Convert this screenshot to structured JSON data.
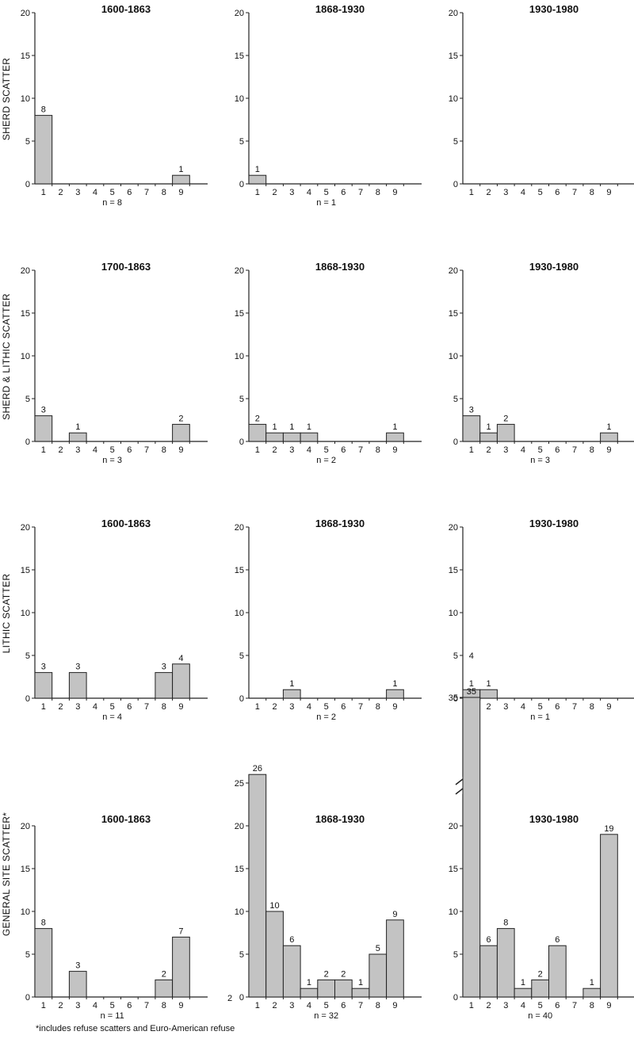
{
  "chart_data": [
    {
      "type": "bar",
      "row_label": "SHERD SCATTER",
      "title": "1600-1863",
      "categories": [
        "1",
        "2",
        "3",
        "4",
        "5",
        "6",
        "7",
        "8",
        "9"
      ],
      "values": [
        8,
        0,
        0,
        0,
        0,
        0,
        0,
        0,
        1
      ],
      "value_labels": [
        "8",
        "",
        "",
        "",
        "",
        "",
        "",
        "",
        "1"
      ],
      "n_label": "n = 8",
      "ylim": [
        0,
        20
      ],
      "yticks": [
        "0",
        "5",
        "10",
        "15",
        "20"
      ]
    },
    {
      "type": "bar",
      "title": "1868-1930",
      "categories": [
        "1",
        "2",
        "3",
        "4",
        "5",
        "6",
        "7",
        "8",
        "9"
      ],
      "values": [
        1,
        0,
        0,
        0,
        0,
        0,
        0,
        0,
        0
      ],
      "value_labels": [
        "1",
        "",
        "",
        "",
        "",
        "",
        "",
        "",
        ""
      ],
      "n_label": "n = 1",
      "ylim": [
        0,
        20
      ],
      "yticks": [
        "0",
        "5",
        "10",
        "15",
        "20"
      ]
    },
    {
      "type": "bar",
      "title": "1930-1980",
      "categories": [
        "1",
        "2",
        "3",
        "4",
        "5",
        "6",
        "7",
        "8",
        "9"
      ],
      "values": [
        0,
        0,
        0,
        0,
        0,
        0,
        0,
        0,
        0
      ],
      "value_labels": [
        "",
        "",
        "",
        "",
        "",
        "",
        "",
        "",
        ""
      ],
      "n_label": "",
      "ylim": [
        0,
        20
      ],
      "yticks": [
        "0",
        "5",
        "10",
        "15",
        "20"
      ]
    },
    {
      "type": "bar",
      "row_label": "SHERD & LITHIC SCATTER",
      "title": "1700-1863",
      "categories": [
        "1",
        "2",
        "3",
        "4",
        "5",
        "6",
        "7",
        "8",
        "9"
      ],
      "values": [
        3,
        0,
        1,
        0,
        0,
        0,
        0,
        0,
        2
      ],
      "value_labels": [
        "3",
        "",
        "1",
        "",
        "",
        "",
        "",
        "",
        "2"
      ],
      "n_label": "n = 3",
      "ylim": [
        0,
        20
      ],
      "yticks": [
        "0",
        "5",
        "10",
        "15",
        "20"
      ]
    },
    {
      "type": "bar",
      "title": "1868-1930",
      "categories": [
        "1",
        "2",
        "3",
        "4",
        "5",
        "6",
        "7",
        "8",
        "9"
      ],
      "values": [
        2,
        1,
        1,
        1,
        0,
        0,
        0,
        0,
        1
      ],
      "value_labels": [
        "2",
        "1",
        "1",
        "1",
        "",
        "",
        "",
        "",
        "1"
      ],
      "n_label": "n = 2",
      "ylim": [
        0,
        20
      ],
      "yticks": [
        "0",
        "5",
        "10",
        "15",
        "20"
      ]
    },
    {
      "type": "bar",
      "title": "1930-1980",
      "categories": [
        "1",
        "2",
        "3",
        "4",
        "5",
        "6",
        "7",
        "8",
        "9"
      ],
      "values": [
        3,
        1,
        2,
        0,
        0,
        0,
        0,
        0,
        1
      ],
      "value_labels": [
        "3",
        "1",
        "2",
        "",
        "",
        "",
        "",
        "",
        "1"
      ],
      "n_label": "n = 3",
      "ylim": [
        0,
        20
      ],
      "yticks": [
        "0",
        "5",
        "10",
        "15",
        "20"
      ]
    },
    {
      "type": "bar",
      "row_label": "LITHIC SCATTER",
      "title": "1600-1863",
      "categories": [
        "1",
        "2",
        "3",
        "4",
        "5",
        "6",
        "7",
        "8",
        "9"
      ],
      "values": [
        3,
        0,
        3,
        0,
        0,
        0,
        0,
        3,
        4
      ],
      "value_labels": [
        "3",
        "",
        "3",
        "",
        "",
        "",
        "",
        "3",
        "4"
      ],
      "n_label": "n = 4",
      "ylim": [
        0,
        20
      ],
      "yticks": [
        "0",
        "5",
        "10",
        "15",
        "20"
      ]
    },
    {
      "type": "bar",
      "title": "1868-1930",
      "categories": [
        "1",
        "2",
        "3",
        "4",
        "5",
        "6",
        "7",
        "8",
        "9"
      ],
      "values": [
        0,
        0,
        1,
        0,
        0,
        0,
        0,
        0,
        1
      ],
      "value_labels": [
        "",
        "",
        "1",
        "",
        "",
        "",
        "",
        "",
        "1"
      ],
      "n_label": "n = 2",
      "ylim": [
        0,
        20
      ],
      "yticks": [
        "0",
        "5",
        "10",
        "15",
        "20"
      ]
    },
    {
      "type": "bar",
      "title": "1930-1980",
      "categories": [
        "1",
        "2",
        "3",
        "4",
        "5",
        "6",
        "7",
        "8",
        "9"
      ],
      "values": [
        1,
        1,
        0,
        0,
        0,
        0,
        0,
        0,
        0
      ],
      "value_labels": [
        "1",
        "1",
        "",
        "",
        "",
        "",
        "",
        "",
        ""
      ],
      "extra_label": "4",
      "n_label": "n = 1",
      "ylim": [
        0,
        20
      ],
      "yticks": [
        "0",
        "5",
        "10",
        "15",
        "20"
      ]
    },
    {
      "type": "bar",
      "row_label": "GENERAL SITE SCATTER*",
      "title": "1600-1863",
      "categories": [
        "1",
        "2",
        "3",
        "4",
        "5",
        "6",
        "7",
        "8",
        "9"
      ],
      "values": [
        8,
        0,
        3,
        0,
        0,
        0,
        0,
        2,
        7
      ],
      "value_labels": [
        "8",
        "",
        "3",
        "",
        "",
        "",
        "",
        "2",
        "7"
      ],
      "n_label": "n = 11",
      "ylim": [
        0,
        20
      ],
      "yticks": [
        "0",
        "5",
        "10",
        "15",
        "20"
      ]
    },
    {
      "type": "bar",
      "title": "1868-1930",
      "categories": [
        "1",
        "2",
        "3",
        "4",
        "5",
        "6",
        "7",
        "8",
        "9"
      ],
      "values": [
        26,
        10,
        6,
        1,
        2,
        2,
        1,
        5,
        9
      ],
      "value_labels": [
        "26",
        "10",
        "6",
        "1",
        "2",
        "2",
        "1",
        "5",
        "9"
      ],
      "n_label": "n = 32",
      "ylim": [
        0,
        26
      ],
      "yticks": [
        "0",
        "5",
        "10",
        "15",
        "20",
        "25"
      ],
      "side_label": "2"
    },
    {
      "type": "bar",
      "title": "1930-1980",
      "categories": [
        "1",
        "2",
        "3",
        "4",
        "5",
        "6",
        "7",
        "8",
        "9"
      ],
      "values": [
        35,
        6,
        8,
        1,
        2,
        6,
        0,
        1,
        19
      ],
      "value_labels": [
        "35",
        "6",
        "8",
        "1",
        "2",
        "6",
        "",
        "1",
        "19"
      ],
      "n_label": "n = 40",
      "ylim": [
        0,
        20
      ],
      "axis_break": true,
      "yticks": [
        "0",
        "5",
        "10",
        "15",
        "20",
        "35"
      ]
    }
  ],
  "footnote": "*includes refuse scatters and Euro-American refuse"
}
